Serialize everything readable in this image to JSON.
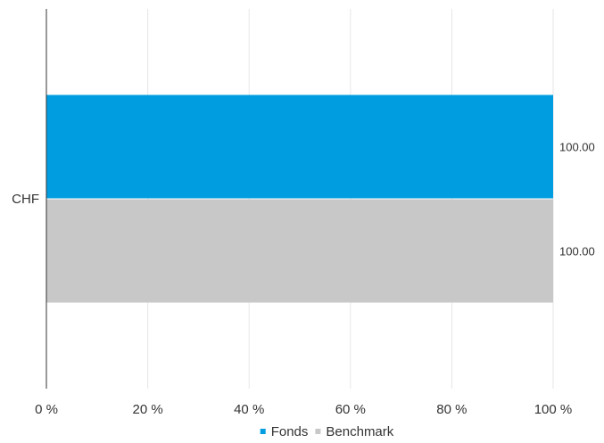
{
  "chart_data": {
    "type": "bar",
    "orientation": "horizontal",
    "categories": [
      "CHF"
    ],
    "series": [
      {
        "name": "Fonds",
        "values": [
          100.0
        ],
        "color": "#009ee0",
        "label": "100.00"
      },
      {
        "name": "Benchmark",
        "values": [
          100.0
        ],
        "color": "#c8c8c8",
        "label": "100.00"
      }
    ],
    "xlim": [
      0,
      100
    ],
    "xticks": [
      0,
      20,
      40,
      60,
      80,
      100
    ],
    "xtick_labels": [
      "0 %",
      "20 %",
      "40 %",
      "60 %",
      "80 %",
      "100 %"
    ],
    "grid": true,
    "legend_position": "bottom-center"
  }
}
